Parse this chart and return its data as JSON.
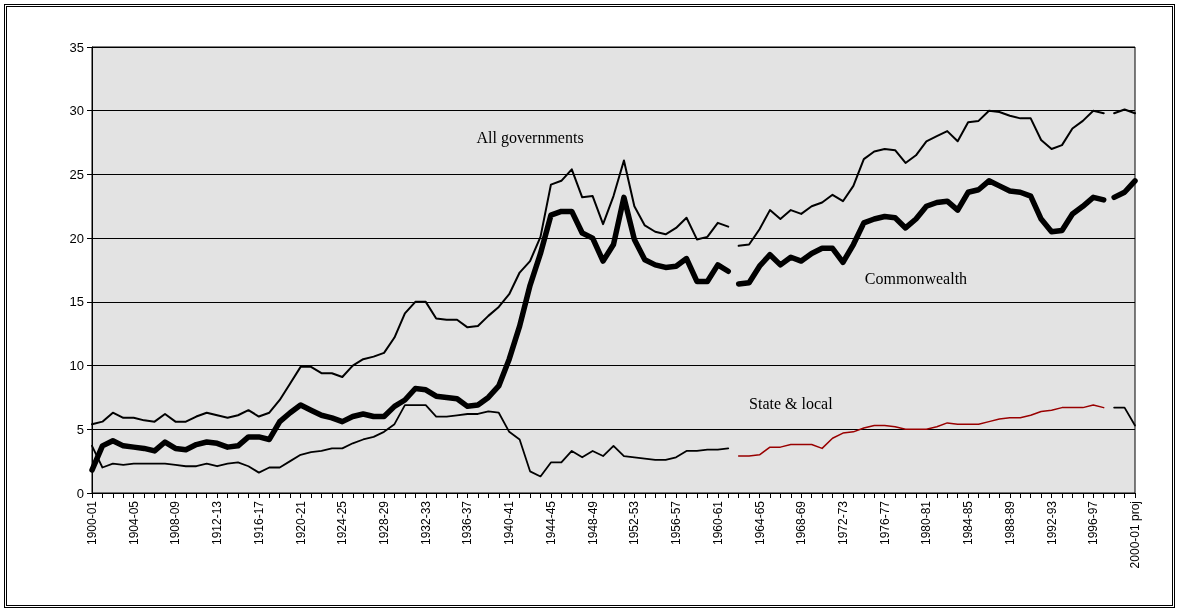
{
  "chart_data": {
    "type": "line",
    "categories": [
      "1900-01",
      null,
      null,
      null,
      "1904-05",
      null,
      null,
      null,
      "1908-09",
      null,
      null,
      null,
      "1912-13",
      null,
      null,
      null,
      "1916-17",
      null,
      null,
      null,
      "1920-21",
      null,
      null,
      null,
      "1924-25",
      null,
      null,
      null,
      "1928-29",
      null,
      null,
      null,
      "1932-33",
      null,
      null,
      null,
      "1936-37",
      null,
      null,
      null,
      "1940-41",
      null,
      null,
      null,
      "1944-45",
      null,
      null,
      null,
      "1948-49",
      null,
      null,
      null,
      "1952-53",
      null,
      null,
      null,
      "1956-57",
      null,
      null,
      null,
      "1960-61",
      null,
      null,
      null,
      "1964-65",
      null,
      null,
      null,
      "1968-69",
      null,
      null,
      null,
      "1972-73",
      null,
      null,
      null,
      "1976-77",
      null,
      null,
      null,
      "1980-81",
      null,
      null,
      null,
      "1984-85",
      null,
      null,
      null,
      "1988-89",
      null,
      null,
      null,
      "1992-93",
      null,
      null,
      null,
      "1996-97",
      null,
      null,
      null,
      "2000-01 proj"
    ],
    "ylim": [
      0,
      35
    ],
    "yticks": [
      0,
      5,
      10,
      15,
      20,
      25,
      30,
      35
    ],
    "grid": "y",
    "series": [
      {
        "name": "All governments",
        "color": "#000000",
        "values": [
          5.4,
          5.6,
          6.3,
          5.9,
          5.9,
          5.7,
          5.6,
          6.2,
          5.6,
          5.6,
          6.0,
          6.3,
          6.1,
          5.9,
          6.1,
          6.5,
          6.0,
          6.3,
          7.3,
          8.6,
          9.9,
          9.9,
          9.4,
          9.4,
          9.1,
          10.0,
          10.5,
          10.7,
          11.0,
          12.2,
          14.1,
          15.0,
          15.0,
          13.7,
          13.6,
          13.6,
          13.0,
          13.1,
          13.9,
          14.6,
          15.6,
          17.3,
          18.2,
          20.1,
          24.2,
          24.5,
          25.4,
          23.2,
          23.3,
          21.1,
          23.3,
          26.1,
          22.5,
          21.0,
          20.5,
          20.3,
          20.8,
          21.6,
          19.9,
          20.1,
          21.2,
          20.9,
          null,
          null,
          null,
          null,
          null,
          null,
          null,
          null,
          null,
          null,
          null,
          null,
          null,
          null,
          null,
          null,
          null,
          null,
          null,
          null,
          null,
          null,
          null,
          null,
          null,
          null,
          null,
          null,
          null,
          null,
          null,
          null,
          null,
          null,
          null,
          null,
          null,
          null,
          null
        ]
      },
      {
        "color": "#000000",
        "values": [
          null,
          null,
          null,
          null,
          null,
          null,
          null,
          null,
          null,
          null,
          null,
          null,
          null,
          null,
          null,
          null,
          null,
          null,
          null,
          null,
          null,
          null,
          null,
          null,
          null,
          null,
          null,
          null,
          null,
          null,
          null,
          null,
          null,
          null,
          null,
          null,
          null,
          null,
          null,
          null,
          null,
          null,
          null,
          null,
          null,
          null,
          null,
          null,
          null,
          null,
          null,
          null,
          null,
          null,
          null,
          null,
          null,
          null,
          null,
          null,
          null,
          null,
          19.4,
          19.5,
          20.7,
          22.2,
          21.5,
          22.2,
          21.9,
          22.5,
          22.8,
          23.4,
          22.9,
          24.1,
          26.2,
          26.8,
          27.0,
          26.9,
          25.9,
          26.5,
          27.6,
          28.0,
          28.4,
          27.6,
          29.1,
          29.2,
          30.0,
          29.9,
          29.6,
          29.4,
          29.4,
          27.7,
          27.0,
          27.3,
          28.6,
          29.2,
          30.0,
          29.8,
          null,
          null,
          null
        ]
      },
      {
        "color": "#000000",
        "values": [
          null,
          null,
          null,
          null,
          null,
          null,
          null,
          null,
          null,
          null,
          null,
          null,
          null,
          null,
          null,
          null,
          null,
          null,
          null,
          null,
          null,
          null,
          null,
          null,
          null,
          null,
          null,
          null,
          null,
          null,
          null,
          null,
          null,
          null,
          null,
          null,
          null,
          null,
          null,
          null,
          null,
          null,
          null,
          null,
          null,
          null,
          null,
          null,
          null,
          null,
          null,
          null,
          null,
          null,
          null,
          null,
          null,
          null,
          null,
          null,
          null,
          null,
          null,
          null,
          null,
          null,
          null,
          null,
          null,
          null,
          null,
          null,
          null,
          null,
          null,
          null,
          null,
          null,
          null,
          null,
          null,
          null,
          null,
          null,
          null,
          null,
          null,
          null,
          null,
          null,
          null,
          null,
          null,
          null,
          null,
          null,
          null,
          null,
          29.8,
          30.1,
          29.8
        ]
      },
      {
        "color": "#000000",
        "values": [
          1.8,
          3.7,
          4.1,
          3.7,
          3.6,
          3.5,
          3.3,
          4.0,
          3.5,
          3.4,
          3.8,
          4.0,
          3.9,
          3.6,
          3.7,
          4.4,
          4.4,
          4.2,
          5.6,
          6.3,
          6.9,
          6.5,
          6.1,
          5.9,
          5.6,
          6.0,
          6.2,
          6.0,
          6.0,
          6.8,
          7.3,
          8.2,
          8.1,
          7.6,
          7.5,
          7.4,
          6.8,
          6.9,
          7.5,
          8.4,
          10.5,
          13.1,
          16.3,
          18.8,
          21.8,
          22.1,
          22.1,
          20.4,
          20.0,
          18.2,
          19.5,
          23.2,
          19.9,
          18.3,
          17.9,
          17.7,
          17.8,
          18.4,
          16.6,
          16.6,
          17.9,
          17.4,
          null,
          null,
          null,
          null,
          null,
          null,
          null,
          null,
          null,
          null,
          null,
          null,
          null,
          null,
          null,
          null,
          null,
          null,
          null,
          null,
          null,
          null,
          null,
          null,
          null,
          null,
          null,
          null,
          null,
          null,
          null,
          null,
          null,
          null,
          null,
          null,
          null,
          null,
          null
        ]
      },
      {
        "name": "Commonwealth",
        "color": "#000000",
        "values": [
          null,
          null,
          null,
          null,
          null,
          null,
          null,
          null,
          null,
          null,
          null,
          null,
          null,
          null,
          null,
          null,
          null,
          null,
          null,
          null,
          null,
          null,
          null,
          null,
          null,
          null,
          null,
          null,
          null,
          null,
          null,
          null,
          null,
          null,
          null,
          null,
          null,
          null,
          null,
          null,
          null,
          null,
          null,
          null,
          null,
          null,
          null,
          null,
          null,
          null,
          null,
          null,
          null,
          null,
          null,
          null,
          null,
          null,
          null,
          null,
          null,
          null,
          16.4,
          16.5,
          17.8,
          18.7,
          17.9,
          18.5,
          18.2,
          18.8,
          19.2,
          19.2,
          18.1,
          19.5,
          21.2,
          21.5,
          21.7,
          21.6,
          20.8,
          21.5,
          22.5,
          22.8,
          22.9,
          22.2,
          23.6,
          23.8,
          24.5,
          24.1,
          23.7,
          23.6,
          23.3,
          21.5,
          20.5,
          20.6,
          21.9,
          22.5,
          23.2,
          23.0,
          null,
          null,
          null
        ]
      },
      {
        "color": "#000000",
        "values": [
          null,
          null,
          null,
          null,
          null,
          null,
          null,
          null,
          null,
          null,
          null,
          null,
          null,
          null,
          null,
          null,
          null,
          null,
          null,
          null,
          null,
          null,
          null,
          null,
          null,
          null,
          null,
          null,
          null,
          null,
          null,
          null,
          null,
          null,
          null,
          null,
          null,
          null,
          null,
          null,
          null,
          null,
          null,
          null,
          null,
          null,
          null,
          null,
          null,
          null,
          null,
          null,
          null,
          null,
          null,
          null,
          null,
          null,
          null,
          null,
          null,
          null,
          null,
          null,
          null,
          null,
          null,
          null,
          null,
          null,
          null,
          null,
          null,
          null,
          null,
          null,
          null,
          null,
          null,
          null,
          null,
          null,
          null,
          null,
          null,
          null,
          null,
          null,
          null,
          null,
          null,
          null,
          null,
          null,
          null,
          null,
          null,
          null,
          23.2,
          23.6,
          24.5
        ]
      },
      {
        "name": "State & local",
        "color": "#000000",
        "values": [
          3.7,
          2.0,
          2.3,
          2.2,
          2.3,
          2.3,
          2.3,
          2.3,
          2.2,
          2.1,
          2.1,
          2.3,
          2.1,
          2.3,
          2.4,
          2.1,
          1.6,
          2.0,
          2.0,
          2.5,
          3.0,
          3.2,
          3.3,
          3.5,
          3.5,
          3.9,
          4.2,
          4.4,
          4.8,
          5.4,
          6.9,
          6.9,
          6.9,
          6.0,
          6.0,
          6.1,
          6.2,
          6.2,
          6.4,
          6.3,
          4.8,
          4.2,
          1.7,
          1.3,
          2.4,
          2.4,
          3.3,
          2.8,
          3.3,
          2.9,
          3.7,
          2.9,
          2.8,
          2.7,
          2.6,
          2.6,
          2.8,
          3.3,
          3.3,
          3.4,
          3.4,
          3.5,
          null,
          null,
          null,
          null,
          null,
          null,
          null,
          null,
          null,
          null,
          null,
          null,
          null,
          null,
          null,
          null,
          null,
          null,
          null,
          null,
          null,
          null,
          null,
          null,
          null,
          null,
          null,
          null,
          null,
          null,
          null,
          null,
          null,
          null,
          null,
          null,
          null,
          null,
          null
        ]
      },
      {
        "color": "#990000",
        "values": [
          null,
          null,
          null,
          null,
          null,
          null,
          null,
          null,
          null,
          null,
          null,
          null,
          null,
          null,
          null,
          null,
          null,
          null,
          null,
          null,
          null,
          null,
          null,
          null,
          null,
          null,
          null,
          null,
          null,
          null,
          null,
          null,
          null,
          null,
          null,
          null,
          null,
          null,
          null,
          null,
          null,
          null,
          null,
          null,
          null,
          null,
          null,
          null,
          null,
          null,
          null,
          null,
          null,
          null,
          null,
          null,
          null,
          null,
          null,
          null,
          null,
          null,
          2.9,
          2.9,
          3.0,
          3.6,
          3.6,
          3.8,
          3.8,
          3.8,
          3.5,
          4.3,
          4.7,
          4.8,
          5.1,
          5.3,
          5.3,
          5.2,
          5.0,
          5.0,
          5.0,
          5.2,
          5.5,
          5.4,
          5.4,
          5.4,
          5.6,
          5.8,
          5.9,
          5.9,
          6.1,
          6.4,
          6.5,
          6.7,
          6.7,
          6.7,
          6.9,
          6.7,
          null,
          null,
          null
        ]
      },
      {
        "color": "#000000",
        "values": [
          null,
          null,
          null,
          null,
          null,
          null,
          null,
          null,
          null,
          null,
          null,
          null,
          null,
          null,
          null,
          null,
          null,
          null,
          null,
          null,
          null,
          null,
          null,
          null,
          null,
          null,
          null,
          null,
          null,
          null,
          null,
          null,
          null,
          null,
          null,
          null,
          null,
          null,
          null,
          null,
          null,
          null,
          null,
          null,
          null,
          null,
          null,
          null,
          null,
          null,
          null,
          null,
          null,
          null,
          null,
          null,
          null,
          null,
          null,
          null,
          null,
          null,
          null,
          null,
          null,
          null,
          null,
          null,
          null,
          null,
          null,
          null,
          null,
          null,
          null,
          null,
          null,
          null,
          null,
          null,
          null,
          null,
          null,
          null,
          null,
          null,
          null,
          null,
          null,
          null,
          null,
          null,
          null,
          null,
          null,
          null,
          null,
          null,
          6.7,
          6.7,
          5.3
        ]
      }
    ]
  }
}
